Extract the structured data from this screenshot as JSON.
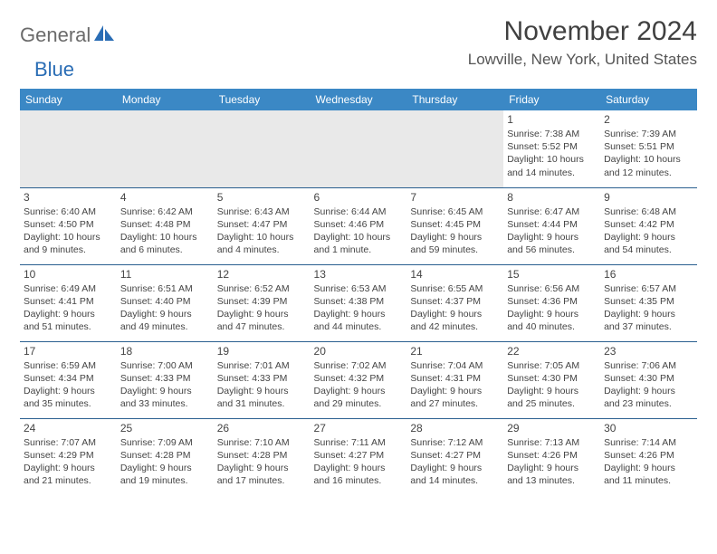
{
  "brand": {
    "part1": "General",
    "part2": "Blue"
  },
  "title": "November 2024",
  "location": "Lowville, New York, United States",
  "colors": {
    "headerBar": "#3b88c5",
    "cellBorder": "#2a5f8f",
    "emptyCell": "#e9e9e9",
    "text": "#333333",
    "logoGray": "#6b6b6b",
    "logoBlue": "#2a6db5"
  },
  "dow": [
    "Sunday",
    "Monday",
    "Tuesday",
    "Wednesday",
    "Thursday",
    "Friday",
    "Saturday"
  ],
  "weeks": [
    [
      null,
      null,
      null,
      null,
      null,
      {
        "d": "1",
        "sr": "7:38 AM",
        "ss": "5:52 PM",
        "dl": "10 hours and 14 minutes."
      },
      {
        "d": "2",
        "sr": "7:39 AM",
        "ss": "5:51 PM",
        "dl": "10 hours and 12 minutes."
      }
    ],
    [
      {
        "d": "3",
        "sr": "6:40 AM",
        "ss": "4:50 PM",
        "dl": "10 hours and 9 minutes."
      },
      {
        "d": "4",
        "sr": "6:42 AM",
        "ss": "4:48 PM",
        "dl": "10 hours and 6 minutes."
      },
      {
        "d": "5",
        "sr": "6:43 AM",
        "ss": "4:47 PM",
        "dl": "10 hours and 4 minutes."
      },
      {
        "d": "6",
        "sr": "6:44 AM",
        "ss": "4:46 PM",
        "dl": "10 hours and 1 minute."
      },
      {
        "d": "7",
        "sr": "6:45 AM",
        "ss": "4:45 PM",
        "dl": "9 hours and 59 minutes."
      },
      {
        "d": "8",
        "sr": "6:47 AM",
        "ss": "4:44 PM",
        "dl": "9 hours and 56 minutes."
      },
      {
        "d": "9",
        "sr": "6:48 AM",
        "ss": "4:42 PM",
        "dl": "9 hours and 54 minutes."
      }
    ],
    [
      {
        "d": "10",
        "sr": "6:49 AM",
        "ss": "4:41 PM",
        "dl": "9 hours and 51 minutes."
      },
      {
        "d": "11",
        "sr": "6:51 AM",
        "ss": "4:40 PM",
        "dl": "9 hours and 49 minutes."
      },
      {
        "d": "12",
        "sr": "6:52 AM",
        "ss": "4:39 PM",
        "dl": "9 hours and 47 minutes."
      },
      {
        "d": "13",
        "sr": "6:53 AM",
        "ss": "4:38 PM",
        "dl": "9 hours and 44 minutes."
      },
      {
        "d": "14",
        "sr": "6:55 AM",
        "ss": "4:37 PM",
        "dl": "9 hours and 42 minutes."
      },
      {
        "d": "15",
        "sr": "6:56 AM",
        "ss": "4:36 PM",
        "dl": "9 hours and 40 minutes."
      },
      {
        "d": "16",
        "sr": "6:57 AM",
        "ss": "4:35 PM",
        "dl": "9 hours and 37 minutes."
      }
    ],
    [
      {
        "d": "17",
        "sr": "6:59 AM",
        "ss": "4:34 PM",
        "dl": "9 hours and 35 minutes."
      },
      {
        "d": "18",
        "sr": "7:00 AM",
        "ss": "4:33 PM",
        "dl": "9 hours and 33 minutes."
      },
      {
        "d": "19",
        "sr": "7:01 AM",
        "ss": "4:33 PM",
        "dl": "9 hours and 31 minutes."
      },
      {
        "d": "20",
        "sr": "7:02 AM",
        "ss": "4:32 PM",
        "dl": "9 hours and 29 minutes."
      },
      {
        "d": "21",
        "sr": "7:04 AM",
        "ss": "4:31 PM",
        "dl": "9 hours and 27 minutes."
      },
      {
        "d": "22",
        "sr": "7:05 AM",
        "ss": "4:30 PM",
        "dl": "9 hours and 25 minutes."
      },
      {
        "d": "23",
        "sr": "7:06 AM",
        "ss": "4:30 PM",
        "dl": "9 hours and 23 minutes."
      }
    ],
    [
      {
        "d": "24",
        "sr": "7:07 AM",
        "ss": "4:29 PM",
        "dl": "9 hours and 21 minutes."
      },
      {
        "d": "25",
        "sr": "7:09 AM",
        "ss": "4:28 PM",
        "dl": "9 hours and 19 minutes."
      },
      {
        "d": "26",
        "sr": "7:10 AM",
        "ss": "4:28 PM",
        "dl": "9 hours and 17 minutes."
      },
      {
        "d": "27",
        "sr": "7:11 AM",
        "ss": "4:27 PM",
        "dl": "9 hours and 16 minutes."
      },
      {
        "d": "28",
        "sr": "7:12 AM",
        "ss": "4:27 PM",
        "dl": "9 hours and 14 minutes."
      },
      {
        "d": "29",
        "sr": "7:13 AM",
        "ss": "4:26 PM",
        "dl": "9 hours and 13 minutes."
      },
      {
        "d": "30",
        "sr": "7:14 AM",
        "ss": "4:26 PM",
        "dl": "9 hours and 11 minutes."
      }
    ]
  ],
  "labels": {
    "sunrise": "Sunrise:",
    "sunset": "Sunset:",
    "daylight": "Daylight:"
  }
}
